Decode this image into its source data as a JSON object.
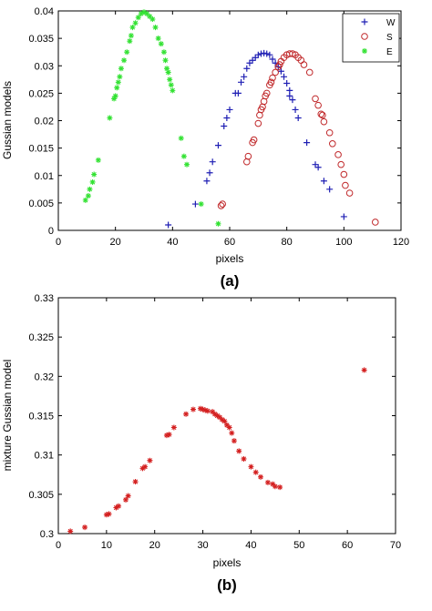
{
  "chart_data": [
    {
      "type": "scatter",
      "panel_label": "(a)",
      "xlabel": "pixels",
      "ylabel": "Gussian models",
      "xlim": [
        0,
        120
      ],
      "ylim": [
        0,
        0.04
      ],
      "xticks": [
        0,
        20,
        40,
        60,
        80,
        100,
        120
      ],
      "yticks": [
        0,
        0.005,
        0.01,
        0.015,
        0.02,
        0.025,
        0.03,
        0.035,
        0.04
      ],
      "ytick_labels": [
        "0",
        "0.005",
        "0.01",
        "0.015",
        "0.02",
        "0.025",
        "0.03",
        "0.035",
        "0.04"
      ],
      "grid": false,
      "legend_position": "top-right",
      "series": [
        {
          "name": "W",
          "marker": "plus",
          "color": "#1f1fb4",
          "points": [
            [
              38.5,
              0.001
            ],
            [
              48,
              0.0048
            ],
            [
              52,
              0.009
            ],
            [
              53,
              0.0105
            ],
            [
              54,
              0.0125
            ],
            [
              56,
              0.0155
            ],
            [
              58,
              0.019
            ],
            [
              59,
              0.0205
            ],
            [
              60,
              0.022
            ],
            [
              62,
              0.025
            ],
            [
              63,
              0.025
            ],
            [
              64,
              0.027
            ],
            [
              65,
              0.028
            ],
            [
              66,
              0.0295
            ],
            [
              67,
              0.0305
            ],
            [
              68,
              0.031
            ],
            [
              69,
              0.0315
            ],
            [
              70,
              0.032
            ],
            [
              71,
              0.0322
            ],
            [
              72,
              0.0323
            ],
            [
              73,
              0.0322
            ],
            [
              74,
              0.032
            ],
            [
              75,
              0.0312
            ],
            [
              76,
              0.0305
            ],
            [
              77,
              0.0298
            ],
            [
              78,
              0.029
            ],
            [
              79,
              0.028
            ],
            [
              80,
              0.0268
            ],
            [
              81,
              0.0255
            ],
            [
              81,
              0.0245
            ],
            [
              82,
              0.0238
            ],
            [
              83,
              0.022
            ],
            [
              84,
              0.0205
            ],
            [
              87,
              0.016
            ],
            [
              90,
              0.012
            ],
            [
              91,
              0.0115
            ],
            [
              93,
              0.009
            ],
            [
              95,
              0.0075
            ],
            [
              100,
              0.0025
            ]
          ]
        },
        {
          "name": "S",
          "marker": "circle",
          "color": "#c0282a",
          "points": [
            [
              57,
              0.0045
            ],
            [
              57.5,
              0.0048
            ],
            [
              66,
              0.0125
            ],
            [
              66.5,
              0.0135
            ],
            [
              68,
              0.016
            ],
            [
              68.5,
              0.0165
            ],
            [
              70,
              0.0195
            ],
            [
              70.5,
              0.021
            ],
            [
              71,
              0.022
            ],
            [
              71.5,
              0.0225
            ],
            [
              72,
              0.0235
            ],
            [
              72.5,
              0.0245
            ],
            [
              73,
              0.025
            ],
            [
              74,
              0.0265
            ],
            [
              74.5,
              0.027
            ],
            [
              75,
              0.0278
            ],
            [
              76,
              0.0288
            ],
            [
              77,
              0.0298
            ],
            [
              77.5,
              0.0302
            ],
            [
              78,
              0.0308
            ],
            [
              79,
              0.0315
            ],
            [
              80,
              0.032
            ],
            [
              81,
              0.0322
            ],
            [
              82,
              0.0322
            ],
            [
              83,
              0.032
            ],
            [
              84,
              0.0315
            ],
            [
              85,
              0.031
            ],
            [
              86,
              0.0302
            ],
            [
              88,
              0.0288
            ],
            [
              90,
              0.024
            ],
            [
              91,
              0.0228
            ],
            [
              92,
              0.0212
            ],
            [
              92.5,
              0.021
            ],
            [
              93,
              0.0198
            ],
            [
              95,
              0.0178
            ],
            [
              96,
              0.0158
            ],
            [
              98,
              0.0138
            ],
            [
              99,
              0.012
            ],
            [
              100,
              0.0102
            ],
            [
              100.5,
              0.0082
            ],
            [
              102,
              0.0068
            ],
            [
              111,
              0.0015
            ]
          ]
        },
        {
          "name": "E",
          "marker": "star",
          "color": "#33e233",
          "points": [
            [
              9.5,
              0.0055
            ],
            [
              10.5,
              0.0063
            ],
            [
              11,
              0.0075
            ],
            [
              12,
              0.0088
            ],
            [
              12.5,
              0.0102
            ],
            [
              14,
              0.0128
            ],
            [
              18,
              0.0205
            ],
            [
              19.5,
              0.024
            ],
            [
              20,
              0.0245
            ],
            [
              20.5,
              0.026
            ],
            [
              21,
              0.027
            ],
            [
              21.5,
              0.028
            ],
            [
              22,
              0.0295
            ],
            [
              23,
              0.031
            ],
            [
              24,
              0.0325
            ],
            [
              25,
              0.0345
            ],
            [
              25.5,
              0.0355
            ],
            [
              26,
              0.037
            ],
            [
              27,
              0.0378
            ],
            [
              28,
              0.0388
            ],
            [
              29,
              0.0395
            ],
            [
              30,
              0.0398
            ],
            [
              31,
              0.0395
            ],
            [
              32,
              0.039
            ],
            [
              33,
              0.0385
            ],
            [
              34,
              0.037
            ],
            [
              35,
              0.035
            ],
            [
              36,
              0.034
            ],
            [
              37,
              0.0325
            ],
            [
              37.5,
              0.031
            ],
            [
              38,
              0.0295
            ],
            [
              38.5,
              0.0288
            ],
            [
              39,
              0.0275
            ],
            [
              39.5,
              0.0265
            ],
            [
              40,
              0.0255
            ],
            [
              43,
              0.0168
            ],
            [
              44,
              0.0135
            ],
            [
              45,
              0.012
            ],
            [
              50,
              0.0048
            ],
            [
              56,
              0.0012
            ]
          ]
        }
      ]
    },
    {
      "type": "scatter",
      "panel_label": "(b)",
      "xlabel": "pixels",
      "ylabel": "mixture Gussian model",
      "xlim": [
        0,
        70
      ],
      "ylim": [
        0.3,
        0.33
      ],
      "xticks": [
        0,
        10,
        20,
        30,
        40,
        50,
        60,
        70
      ],
      "yticks": [
        0.3,
        0.305,
        0.31,
        0.315,
        0.32,
        0.325,
        0.33
      ],
      "ytick_labels": [
        "0.3",
        "0.305",
        "0.31",
        "0.315",
        "0.32",
        "0.325",
        "0.33"
      ],
      "grid": false,
      "series": [
        {
          "marker": "star",
          "color": "#d42020",
          "points": [
            [
              2.5,
              0.3003
            ],
            [
              5.5,
              0.3008
            ],
            [
              10,
              0.3024
            ],
            [
              10.5,
              0.3025
            ],
            [
              12,
              0.3033
            ],
            [
              12.5,
              0.3035
            ],
            [
              14,
              0.3043
            ],
            [
              14.5,
              0.3048
            ],
            [
              16,
              0.3066
            ],
            [
              17.5,
              0.3083
            ],
            [
              18,
              0.3085
            ],
            [
              19,
              0.3093
            ],
            [
              22.5,
              0.3125
            ],
            [
              23,
              0.3126
            ],
            [
              24,
              0.3135
            ],
            [
              26.5,
              0.3152
            ],
            [
              28,
              0.3158
            ],
            [
              29.5,
              0.3159
            ],
            [
              30,
              0.3158
            ],
            [
              30.5,
              0.3157
            ],
            [
              31,
              0.3156
            ],
            [
              32,
              0.3155
            ],
            [
              32.5,
              0.3152
            ],
            [
              33,
              0.315
            ],
            [
              33.5,
              0.3148
            ],
            [
              34,
              0.3145
            ],
            [
              34.5,
              0.3143
            ],
            [
              35,
              0.3138
            ],
            [
              35.5,
              0.3135
            ],
            [
              36,
              0.3128
            ],
            [
              36.5,
              0.3118
            ],
            [
              37.5,
              0.3105
            ],
            [
              38.5,
              0.3095
            ],
            [
              40,
              0.3085
            ],
            [
              41,
              0.3078
            ],
            [
              42,
              0.3072
            ],
            [
              43.5,
              0.3065
            ],
            [
              44.5,
              0.3063
            ],
            [
              45,
              0.306
            ],
            [
              46,
              0.3059
            ],
            [
              63.5,
              0.3208
            ]
          ]
        }
      ]
    }
  ]
}
